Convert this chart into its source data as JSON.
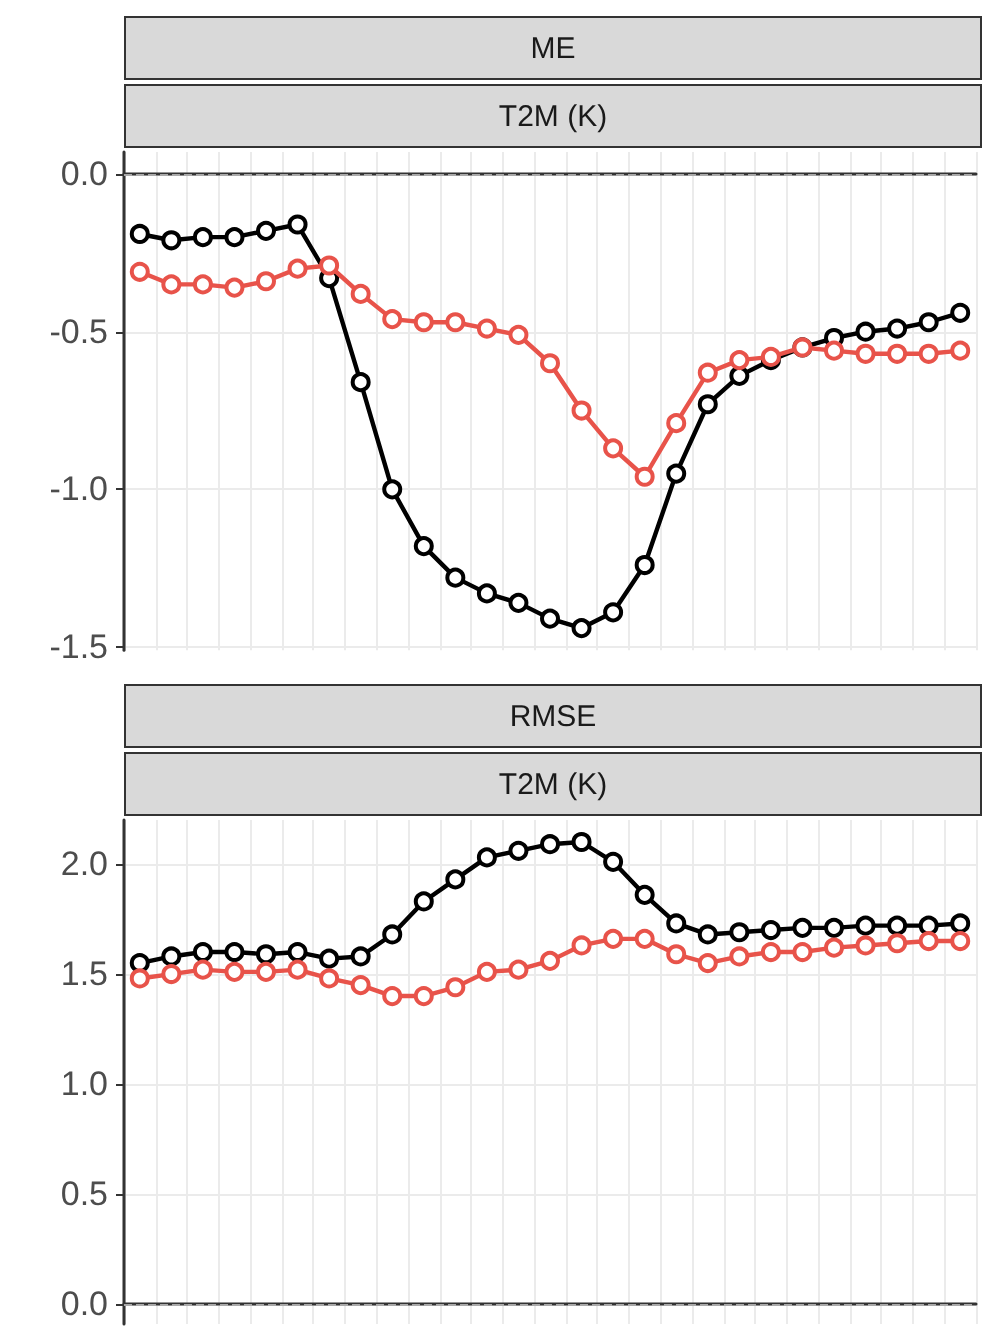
{
  "chart_data": [
    {
      "type": "line",
      "title": "ME",
      "subtitle": "T2M (K)",
      "categories": [
        null,
        null,
        null,
        null,
        null,
        null,
        null,
        null,
        null,
        null,
        null,
        null,
        null,
        null,
        null,
        null,
        null,
        null,
        null,
        null,
        null,
        null,
        null,
        null,
        null,
        null,
        null
      ],
      "series": [
        {
          "color": "#000000",
          "values": [
            -0.19,
            -0.21,
            -0.2,
            -0.2,
            -0.18,
            -0.16,
            -0.33,
            -0.66,
            -1.0,
            -1.18,
            -1.28,
            -1.33,
            -1.36,
            -1.41,
            -1.44,
            -1.39,
            -1.24,
            -0.95,
            -0.73,
            -0.64,
            -0.59,
            -0.55,
            -0.52,
            -0.5,
            -0.49,
            -0.47,
            -0.44
          ]
        },
        {
          "color": "#e8534a",
          "values": [
            -0.31,
            -0.35,
            -0.35,
            -0.36,
            -0.34,
            -0.3,
            -0.29,
            -0.38,
            -0.46,
            -0.47,
            -0.47,
            -0.49,
            -0.51,
            -0.6,
            -0.75,
            -0.87,
            -0.96,
            -0.79,
            -0.63,
            -0.59,
            -0.58,
            -0.55,
            -0.56,
            -0.57,
            -0.57,
            -0.57,
            -0.56
          ]
        }
      ],
      "ylim": [
        -1.51,
        0.07
      ],
      "yticks": [
        {
          "value": 0,
          "label": "0.0"
        },
        {
          "value": -0.5,
          "label": "-0.5"
        },
        {
          "value": -1,
          "label": "-1.0"
        },
        {
          "value": -1.5,
          "label": "-1.5"
        }
      ],
      "ref_lines": [
        {
          "axis": "y",
          "value": 0,
          "color": "#aaaaaa",
          "line_style": "dashed"
        }
      ],
      "grid": true,
      "marker": "circle",
      "line_style": "solid",
      "tick_labels": "y"
    },
    {
      "type": "line",
      "title": "RMSE",
      "subtitle": "T2M (K)",
      "categories": [
        null,
        null,
        null,
        null,
        null,
        null,
        null,
        null,
        null,
        null,
        null,
        null,
        null,
        null,
        null,
        null,
        null,
        null,
        null,
        null,
        null,
        null,
        null,
        null,
        null,
        null,
        null
      ],
      "series": [
        {
          "color": "#000000",
          "values": [
            1.55,
            1.58,
            1.6,
            1.6,
            1.59,
            1.6,
            1.57,
            1.58,
            1.68,
            1.83,
            1.93,
            2.03,
            2.06,
            2.09,
            2.1,
            2.01,
            1.86,
            1.73,
            1.68,
            1.69,
            1.7,
            1.71,
            1.71,
            1.72,
            1.72,
            1.72,
            1.73
          ]
        },
        {
          "color": "#e8534a",
          "values": [
            1.48,
            1.5,
            1.52,
            1.51,
            1.51,
            1.52,
            1.48,
            1.45,
            1.4,
            1.4,
            1.44,
            1.51,
            1.52,
            1.56,
            1.63,
            1.66,
            1.66,
            1.59,
            1.55,
            1.58,
            1.6,
            1.6,
            1.62,
            1.63,
            1.64,
            1.65,
            1.65
          ]
        }
      ],
      "ylim": [
        -0.09,
        2.2
      ],
      "yticks": [
        {
          "value": 0,
          "label": "0.0"
        },
        {
          "value": 0.5,
          "label": "0.5"
        },
        {
          "value": 1,
          "label": "1.0"
        },
        {
          "value": 1.5,
          "label": "1.5"
        },
        {
          "value": 2,
          "label": "2.0"
        }
      ],
      "ref_lines": [
        {
          "axis": "y",
          "value": 0,
          "color": "#aaaaaa",
          "line_style": "dashed"
        }
      ],
      "grid": true,
      "marker": "circle",
      "line_style": "solid",
      "tick_labels": "y"
    }
  ]
}
